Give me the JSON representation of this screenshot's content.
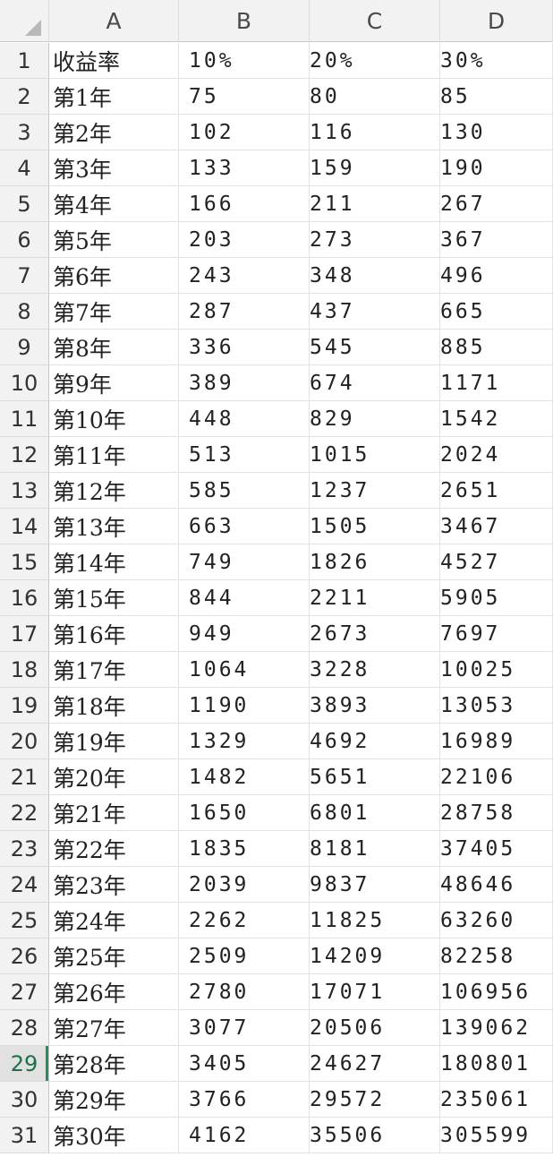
{
  "columns": [
    "A",
    "B",
    "C",
    "D"
  ],
  "header_row": {
    "label": "收益率",
    "b": "10%",
    "c": "20%",
    "d": "30%"
  },
  "rows": [
    [
      "第1年",
      "75",
      "80",
      "85"
    ],
    [
      "第2年",
      "102",
      "116",
      "130"
    ],
    [
      "第3年",
      "133",
      "159",
      "190"
    ],
    [
      "第4年",
      "166",
      "211",
      "267"
    ],
    [
      "第5年",
      "203",
      "273",
      "367"
    ],
    [
      "第6年",
      "243",
      "348",
      "496"
    ],
    [
      "第7年",
      "287",
      "437",
      "665"
    ],
    [
      "第8年",
      "336",
      "545",
      "885"
    ],
    [
      "第9年",
      "389",
      "674",
      "1171"
    ],
    [
      "第10年",
      "448",
      "829",
      "1542"
    ],
    [
      "第11年",
      "513",
      "1015",
      "2024"
    ],
    [
      "第12年",
      "585",
      "1237",
      "2651"
    ],
    [
      "第13年",
      "663",
      "1505",
      "3467"
    ],
    [
      "第14年",
      "749",
      "1826",
      "4527"
    ],
    [
      "第15年",
      "844",
      "2211",
      "5905"
    ],
    [
      "第16年",
      "949",
      "2673",
      "7697"
    ],
    [
      "第17年",
      "1064",
      "3228",
      "10025"
    ],
    [
      "第18年",
      "1190",
      "3893",
      "13053"
    ],
    [
      "第19年",
      "1329",
      "4692",
      "16989"
    ],
    [
      "第20年",
      "1482",
      "5651",
      "22106"
    ],
    [
      "第21年",
      "1650",
      "6801",
      "28758"
    ],
    [
      "第22年",
      "1835",
      "8181",
      "37405"
    ],
    [
      "第23年",
      "2039",
      "9837",
      "48646"
    ],
    [
      "第24年",
      "2262",
      "11825",
      "63260"
    ],
    [
      "第25年",
      "2509",
      "14209",
      "82258"
    ],
    [
      "第26年",
      "2780",
      "17071",
      "106956"
    ],
    [
      "第27年",
      "3077",
      "20506",
      "139062"
    ],
    [
      "第28年",
      "3405",
      "24627",
      "180801"
    ],
    [
      "第29年",
      "3766",
      "29572",
      "235061"
    ],
    [
      "第30年",
      "4162",
      "35506",
      "305599"
    ]
  ],
  "selected_row": 29,
  "accent_color": "#2e8b57"
}
